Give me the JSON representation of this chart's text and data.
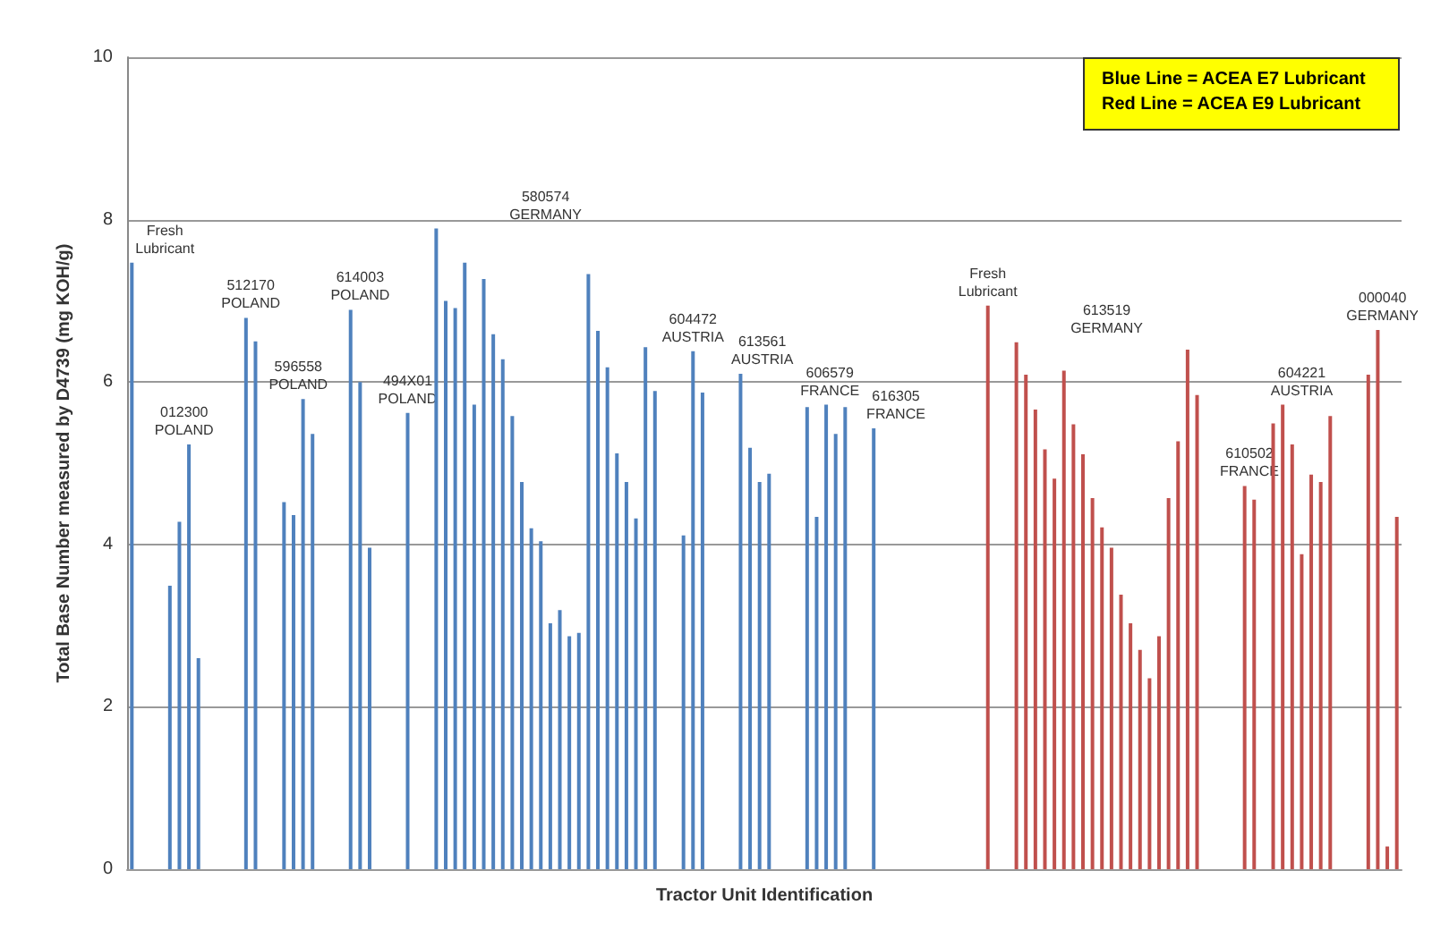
{
  "chart_data": {
    "type": "bar",
    "ylabel": "Total Base Number measured by D4739 (mg KOH/g)",
    "xlabel": "Tractor Unit Identification",
    "annotations": [
      "Blue Line = ACEA E7 Lubricant",
      "Red Line = ACEA E9 Lubricant",
      "Fresh\nLubricant",
      "012300\nPOLAND",
      "512170\nPOLAND",
      "596558\nPOLAND",
      "614003\nPOLAND",
      "494X01\nPOLAND",
      "580574\nGERMANY",
      "604472\nAUSTRIA",
      "613561\nAUSTRIA",
      "606579\nFRANCE",
      "616305\nFRANCE",
      "Fresh\nLubricant",
      "613519\nGERMANY",
      "610502\nFRANCE",
      "604221\nAUSTRIA",
      "000040\nGERMANY"
    ],
    "categories": [
      null,
      null,
      null,
      null,
      null,
      null,
      null,
      null,
      null,
      null,
      null,
      null,
      null,
      null,
      null,
      null,
      null,
      null,
      null,
      null,
      null,
      null,
      null,
      null,
      null,
      null,
      null,
      null,
      null,
      null,
      null,
      null,
      null,
      null,
      null,
      null,
      null,
      null,
      null,
      null,
      null,
      null,
      null,
      null,
      null,
      null,
      null,
      null,
      null,
      null,
      null,
      null,
      null,
      null,
      null,
      null,
      null,
      null,
      null,
      null,
      null,
      null,
      null,
      null,
      null,
      null,
      null,
      null,
      null,
      null,
      null,
      null,
      null,
      null,
      null,
      null,
      null,
      null,
      null,
      null,
      null,
      null,
      null,
      null,
      null,
      null,
      null,
      null,
      null,
      null,
      null,
      null,
      null,
      null,
      null,
      null,
      null,
      null,
      null,
      null,
      null,
      null,
      null,
      null,
      null,
      null,
      null,
      null,
      null,
      null,
      null,
      null,
      null,
      null,
      null,
      null,
      null,
      null,
      null,
      null,
      null,
      null,
      null,
      null,
      null,
      null,
      null,
      null,
      null,
      null,
      null,
      null,
      null,
      null
    ],
    "series": [
      {
        "color": "#4f81bd",
        "values": [
          7.47,
          null,
          null,
          null,
          3.49,
          4.28,
          5.23,
          2.6,
          null,
          null,
          null,
          null,
          6.79,
          6.5,
          null,
          null,
          4.52,
          4.36,
          5.79,
          5.36,
          null,
          null,
          null,
          6.89,
          6.0,
          3.96,
          null,
          null,
          null,
          5.62,
          null,
          null,
          7.89,
          7.0,
          6.91,
          7.47,
          5.72,
          7.27,
          6.59,
          6.28,
          5.58,
          4.77,
          4.2,
          4.04,
          3.03,
          3.19,
          2.87,
          2.91,
          7.33,
          6.63,
          6.18,
          5.12,
          4.77,
          4.32,
          6.43,
          5.89,
          null,
          null,
          4.11,
          6.38,
          5.87,
          null,
          null,
          null,
          6.1,
          5.19,
          4.77,
          4.87,
          null,
          null,
          null,
          5.69,
          4.34,
          5.72,
          5.36,
          5.69,
          null,
          null,
          5.43,
          null,
          null,
          null,
          null,
          null,
          null,
          null,
          null,
          null,
          null,
          null,
          null,
          null,
          null,
          null,
          null,
          null,
          null,
          null,
          null,
          null,
          null,
          null,
          null,
          null,
          null,
          null,
          null,
          null,
          null,
          null,
          null,
          null,
          null,
          null,
          null,
          null,
          null,
          null,
          null,
          null,
          null,
          null,
          null,
          null,
          null,
          null,
          null,
          null,
          null,
          null,
          null,
          null,
          null,
          null
        ]
      },
      {
        "color": "#c0504d",
        "values": [
          null,
          null,
          null,
          null,
          null,
          null,
          null,
          null,
          null,
          null,
          null,
          null,
          null,
          null,
          null,
          null,
          null,
          null,
          null,
          null,
          null,
          null,
          null,
          null,
          null,
          null,
          null,
          null,
          null,
          null,
          null,
          null,
          null,
          null,
          null,
          null,
          null,
          null,
          null,
          null,
          null,
          null,
          null,
          null,
          null,
          null,
          null,
          null,
          null,
          null,
          null,
          null,
          null,
          null,
          null,
          null,
          null,
          null,
          null,
          null,
          null,
          null,
          null,
          null,
          null,
          null,
          null,
          null,
          null,
          null,
          null,
          null,
          null,
          null,
          null,
          null,
          null,
          null,
          null,
          null,
          null,
          null,
          null,
          null,
          null,
          null,
          null,
          null,
          null,
          null,
          6.94,
          null,
          null,
          6.49,
          6.09,
          5.66,
          5.17,
          4.81,
          6.14,
          5.48,
          5.11,
          4.57,
          4.21,
          3.96,
          3.38,
          3.03,
          2.7,
          2.35,
          2.87,
          4.57,
          5.27,
          6.4,
          5.84,
          null,
          null,
          null,
          null,
          4.72,
          4.55,
          null,
          5.49,
          5.72,
          5.23,
          3.88,
          4.86,
          4.77,
          5.58,
          null,
          null,
          null,
          6.09,
          6.64,
          0.28,
          4.34
        ]
      }
    ],
    "ylim": [
      0,
      10
    ],
    "yticks": [
      0,
      2,
      4,
      6,
      8,
      10
    ],
    "grid": "y"
  }
}
